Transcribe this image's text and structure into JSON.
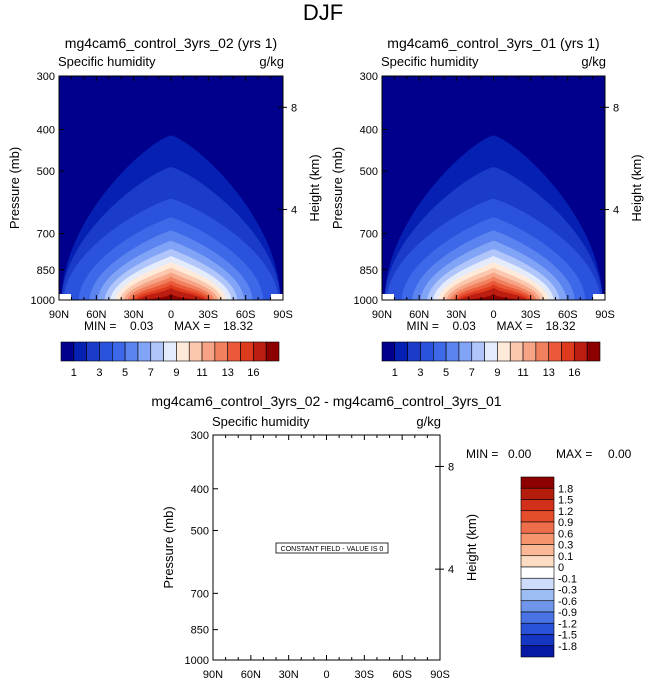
{
  "page_title": "DJF",
  "chart_data": [
    {
      "id": "panel-a",
      "type": "heatmap",
      "title": "mg4cam6_control_3yrs_02 (yrs 1)",
      "variable": "Specific humidity",
      "units": "g/kg",
      "ylabel": "Pressure (mb)",
      "y2label": "Height (km)",
      "x_ticks": [
        "90N",
        "60N",
        "30N",
        "0",
        "30S",
        "60S",
        "90S"
      ],
      "x_lim": [
        90,
        -90
      ],
      "y_ticks": [
        300,
        400,
        500,
        700,
        850,
        1000
      ],
      "y_lim": [
        1000,
        300
      ],
      "y2_ticks": [
        8,
        4
      ],
      "min_label": "MIN =",
      "min_value": "0.03",
      "max_label": "MAX =",
      "max_value": "18.32",
      "max_data": 18.32,
      "colorbar": {
        "orientation": "horizontal",
        "levels": [
          0.5,
          1,
          2,
          3,
          4,
          5,
          6,
          7,
          8,
          9,
          10,
          11,
          12,
          13,
          14,
          16,
          18
        ],
        "labels": [
          "1",
          "3",
          "5",
          "7",
          "9",
          "11",
          "13",
          "16"
        ],
        "colors": [
          "#00008c",
          "#0620b4",
          "#1a3cc8",
          "#2a52dc",
          "#3d68e8",
          "#5b84f0",
          "#82a4f6",
          "#b0c6fa",
          "#e4ecfc",
          "#ffeada",
          "#fbc7ad",
          "#f7a385",
          "#f1805e",
          "#ea5a3a",
          "#dd3a1e",
          "#bb1e10",
          "#8c0000"
        ]
      }
    },
    {
      "id": "panel-b",
      "type": "heatmap",
      "title": "mg4cam6_control_3yrs_01 (yrs 1)",
      "variable": "Specific humidity",
      "units": "g/kg",
      "ylabel": "Pressure (mb)",
      "y2label": "Height (km)",
      "x_ticks": [
        "90N",
        "60N",
        "30N",
        "0",
        "30S",
        "60S",
        "90S"
      ],
      "x_lim": [
        90,
        -90
      ],
      "y_ticks": [
        300,
        400,
        500,
        700,
        850,
        1000
      ],
      "y_lim": [
        1000,
        300
      ],
      "y2_ticks": [
        8,
        4
      ],
      "min_label": "MIN =",
      "min_value": "0.03",
      "max_label": "MAX =",
      "max_value": "18.32",
      "max_data": 18.32,
      "colorbar": {
        "orientation": "horizontal",
        "levels": [
          0.5,
          1,
          2,
          3,
          4,
          5,
          6,
          7,
          8,
          9,
          10,
          11,
          12,
          13,
          14,
          16,
          18
        ],
        "labels": [
          "1",
          "3",
          "5",
          "7",
          "9",
          "11",
          "13",
          "16"
        ],
        "colors": [
          "#00008c",
          "#0620b4",
          "#1a3cc8",
          "#2a52dc",
          "#3d68e8",
          "#5b84f0",
          "#82a4f6",
          "#b0c6fa",
          "#e4ecfc",
          "#ffeada",
          "#fbc7ad",
          "#f7a385",
          "#f1805e",
          "#ea5a3a",
          "#dd3a1e",
          "#bb1e10",
          "#8c0000"
        ]
      }
    },
    {
      "id": "panel-diff",
      "type": "heatmap",
      "title": "mg4cam6_control_3yrs_02 - mg4cam6_control_3yrs_01",
      "variable": "Specific humidity",
      "units": "g/kg",
      "ylabel": "Pressure (mb)",
      "y2label": "Height (km)",
      "x_ticks": [
        "90N",
        "60N",
        "30N",
        "0",
        "30S",
        "60S",
        "90S"
      ],
      "x_lim": [
        90,
        -90
      ],
      "y_ticks": [
        300,
        400,
        500,
        700,
        850,
        1000
      ],
      "y_lim": [
        1000,
        300
      ],
      "y2_ticks": [
        8,
        4
      ],
      "min_label": "MIN =",
      "min_value": "0.00",
      "max_label": "MAX =",
      "max_value": "0.00",
      "annotation": "CONSTANT FIELD - VALUE IS 0",
      "colorbar": {
        "orientation": "vertical",
        "labels": [
          "1.8",
          "1.5",
          "1.2",
          "0.9",
          "0.6",
          "0.3",
          "0.1",
          "0",
          "-0.1",
          "-0.3",
          "-0.6",
          "-0.9",
          "-1.2",
          "-1.5",
          "-1.8"
        ],
        "colors": [
          "#8c0000",
          "#b41c0c",
          "#d2301a",
          "#e44e2c",
          "#ee6e4c",
          "#f6946e",
          "#fab896",
          "#fddcc4",
          "#ffffff",
          "#ccdcfa",
          "#9cbcf4",
          "#7096ec",
          "#4a74e4",
          "#2a52d8",
          "#1436c2",
          "#0618a4"
        ]
      }
    }
  ]
}
